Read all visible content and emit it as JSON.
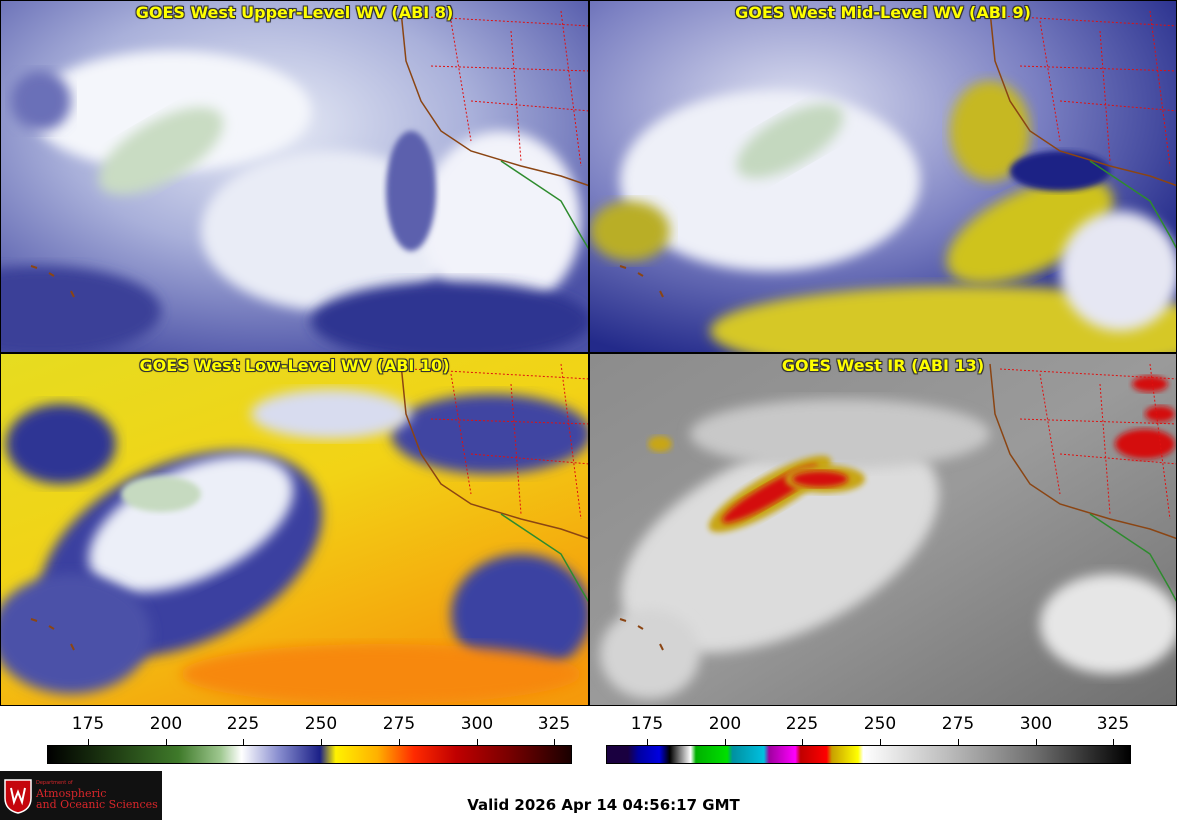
{
  "panels": {
    "upper": {
      "title": "GOES West Upper-Level WV (ABI 8)"
    },
    "mid": {
      "title": "GOES West Mid-Level WV (ABI 9)"
    },
    "low": {
      "title": "GOES West Low-Level WV (ABI 10)"
    },
    "ir": {
      "title": "GOES West IR (ABI 13)"
    }
  },
  "colorbars": {
    "wv": {
      "ticks": [
        "175",
        "200",
        "225",
        "250",
        "275",
        "300",
        "325"
      ]
    },
    "ir": {
      "ticks": [
        "175",
        "200",
        "225",
        "250",
        "275",
        "300",
        "325"
      ]
    }
  },
  "logo": {
    "dept": "Department of",
    "line1": "Atmospheric",
    "line2": "and Oceanic Sciences"
  },
  "valid_time": "Valid 2026 Apr 14 04:56:17 GMT"
}
